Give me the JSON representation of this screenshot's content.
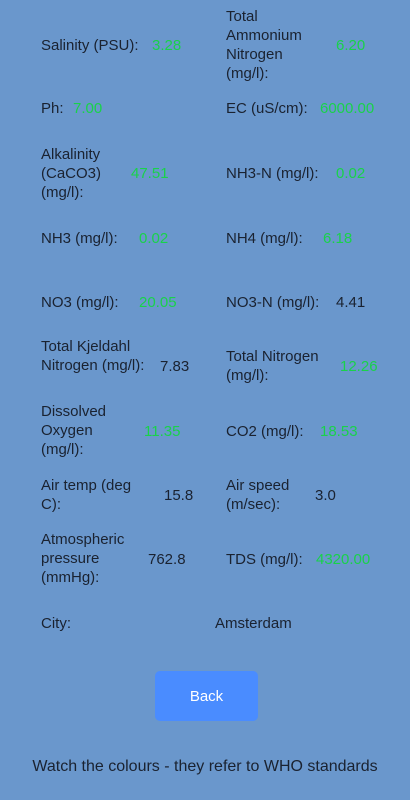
{
  "colors": {
    "background": "#6a97cc",
    "good_value": "#19d24a",
    "button": "#4a8cff"
  },
  "readings": {
    "salinity": {
      "label": "Salinity (PSU):",
      "value": "3.28"
    },
    "tan": {
      "label": "Total Ammonium Nitrogen (mg/l):",
      "value": "6.20"
    },
    "ph": {
      "label": "Ph:",
      "value": "7.00"
    },
    "ec": {
      "label": "EC (uS/cm):",
      "value": "6000.00"
    },
    "alkalinity": {
      "label": "Alkalinity (CaCO3) (mg/l):",
      "value": "47.51"
    },
    "nh3n": {
      "label": "NH3-N (mg/l):",
      "value": "0.02"
    },
    "nh3": {
      "label": "NH3 (mg/l):",
      "value": "0.02"
    },
    "nh4": {
      "label": "NH4 (mg/l):",
      "value": "6.18"
    },
    "no3": {
      "label": "NO3 (mg/l):",
      "value": "20.05"
    },
    "no3n": {
      "label": "NO3-N (mg/l):",
      "value": "4.41"
    },
    "tkn": {
      "label": "Total Kjeldahl Nitrogen (mg/l):",
      "value": "7.83"
    },
    "tn": {
      "label": "Total Nitrogen (mg/l):",
      "value": "12.26"
    },
    "do": {
      "label": "Dissolved Oxygen (mg/l):",
      "value": "11.35"
    },
    "co2": {
      "label": "CO2 (mg/l):",
      "value": "18.53"
    },
    "airtemp": {
      "label": "Air temp (deg C):",
      "value": "15.8"
    },
    "airspeed": {
      "label": "Air speed (m/sec):",
      "value": "3.0"
    },
    "pressure": {
      "label": "Atmospheric pressure (mmHg):",
      "value": "762.8"
    },
    "tds": {
      "label": "TDS (mg/l):",
      "value": "4320.00"
    },
    "city": {
      "label": "City:",
      "value": "Amsterdam"
    }
  },
  "back_label": "Back",
  "footer_note": "Watch the colours - they refer to WHO standards"
}
